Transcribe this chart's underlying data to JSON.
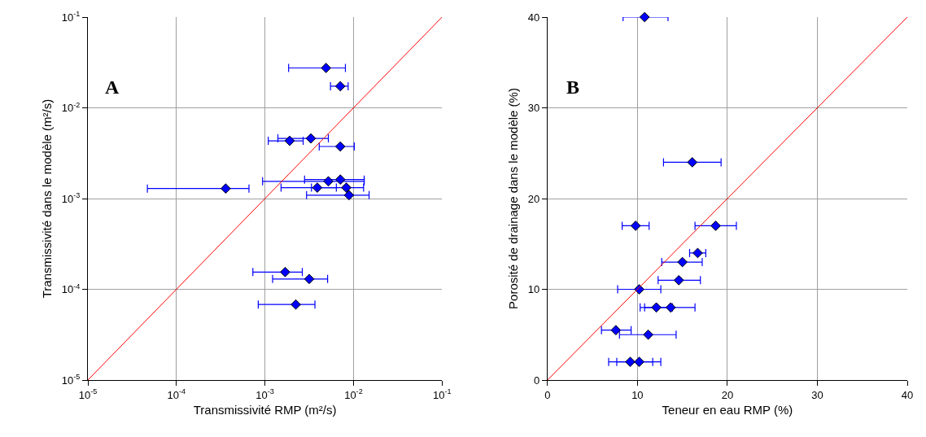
{
  "chart_data": [
    {
      "type": "scatter",
      "xlabel": "Transmissivité RMP (m²/s)",
      "ylabel": "Transmissivité dans le modèle (m²/s)",
      "annotations": [
        "A"
      ],
      "log": "xy",
      "grid": true,
      "xlim": [
        1e-05,
        0.1
      ],
      "ylim": [
        1e-05,
        0.1
      ],
      "xticks": [
        {
          "value": 1e-05,
          "label": "10$^{-5}$"
        },
        {
          "value": 0.0001,
          "label": "10$^{-4}$"
        },
        {
          "value": 0.001,
          "label": "10$^{-3}$"
        },
        {
          "value": 0.01,
          "label": "10$^{-2}$"
        },
        {
          "value": 0.1,
          "label": "10$^{-1}$"
        }
      ],
      "yticks": [
        {
          "value": 1e-05,
          "label": "10$^{-5}$"
        },
        {
          "value": 0.0001,
          "label": "10$^{-4}$"
        },
        {
          "value": 0.001,
          "label": "10$^{-3}$"
        },
        {
          "value": 0.01,
          "label": "10$^{-2}$"
        },
        {
          "value": 0.1,
          "label": "10$^{-1}$"
        }
      ],
      "series": [
        {
          "marker": "diamond",
          "color": "#0000ff",
          "x": [
            0.0049,
            0.0071,
            0.0033,
            0.0019,
            0.0071,
            0.00036,
            0.0052,
            0.0071,
            0.0039,
            0.0083,
            0.0089,
            0.00169,
            0.00316,
            0.00223
          ],
          "values": [
            0.0275,
            0.0173,
            0.0046,
            0.00433,
            0.00375,
            0.00129,
            0.00155,
            0.00162,
            0.00132,
            0.00132,
            0.00109,
            0.000155,
            0.00013,
            6.8e-05
          ],
          "xerrors": [
            [
              0.00185,
              0.0081
            ],
            [
              0.0055,
              0.0087
            ],
            [
              0.0014,
              0.0052
            ],
            [
              0.00109,
              0.0027
            ],
            [
              0.0041,
              0.0102
            ],
            [
              4.7e-05,
              0.00066
            ],
            [
              0.00094,
              0.0132
            ],
            [
              0.0028,
              0.0132
            ],
            [
              0.00152,
              0.0064
            ],
            [
              0.00335,
              0.013
            ],
            [
              0.00295,
              0.015
            ],
            [
              0.00073,
              0.00264
            ],
            [
              0.00122,
              0.0051
            ],
            [
              0.00084,
              0.00367
            ]
          ]
        },
        {
          "type": "line",
          "color": "#ff0000",
          "x": [
            1e-05,
            0.1
          ],
          "values": [
            1e-05,
            0.1
          ]
        }
      ]
    },
    {
      "type": "scatter",
      "xlabel": "Teneur en eau RMP (%)",
      "ylabel": "Porosité de drainage dans le modèle (%)",
      "annotations": [
        "B"
      ],
      "grid": true,
      "xlim": [
        0,
        40
      ],
      "ylim": [
        0,
        40
      ],
      "xticks": [
        0,
        10,
        20,
        30,
        40
      ],
      "yticks": [
        0,
        10,
        20,
        30,
        40
      ],
      "series": [
        {
          "marker": "diamond",
          "color": "#0000ff",
          "x": [
            10.8,
            16.1,
            9.8,
            18.7,
            16.7,
            15.0,
            14.6,
            10.2,
            12.1,
            13.7,
            7.6,
            11.2,
            9.2,
            10.2
          ],
          "values": [
            40,
            24,
            17,
            17,
            14,
            13,
            11,
            10,
            8,
            8,
            5.5,
            5,
            2,
            2
          ],
          "xerrors": [
            [
              8.4,
              13.4
            ],
            [
              12.9,
              19.3
            ],
            [
              8.3,
              11.3
            ],
            [
              16.4,
              21.0
            ],
            [
              15.8,
              17.6
            ],
            [
              12.7,
              17.2
            ],
            [
              12.3,
              17.0
            ],
            [
              7.8,
              12.6
            ],
            [
              10.3,
              13.9
            ],
            [
              10.8,
              16.4
            ],
            [
              6.0,
              9.3
            ],
            [
              8.0,
              14.3
            ],
            [
              6.8,
              11.7
            ],
            [
              7.7,
              12.6
            ]
          ]
        },
        {
          "type": "line",
          "color": "#ff0000",
          "x": [
            0,
            40
          ],
          "values": [
            0,
            40
          ]
        }
      ]
    }
  ]
}
